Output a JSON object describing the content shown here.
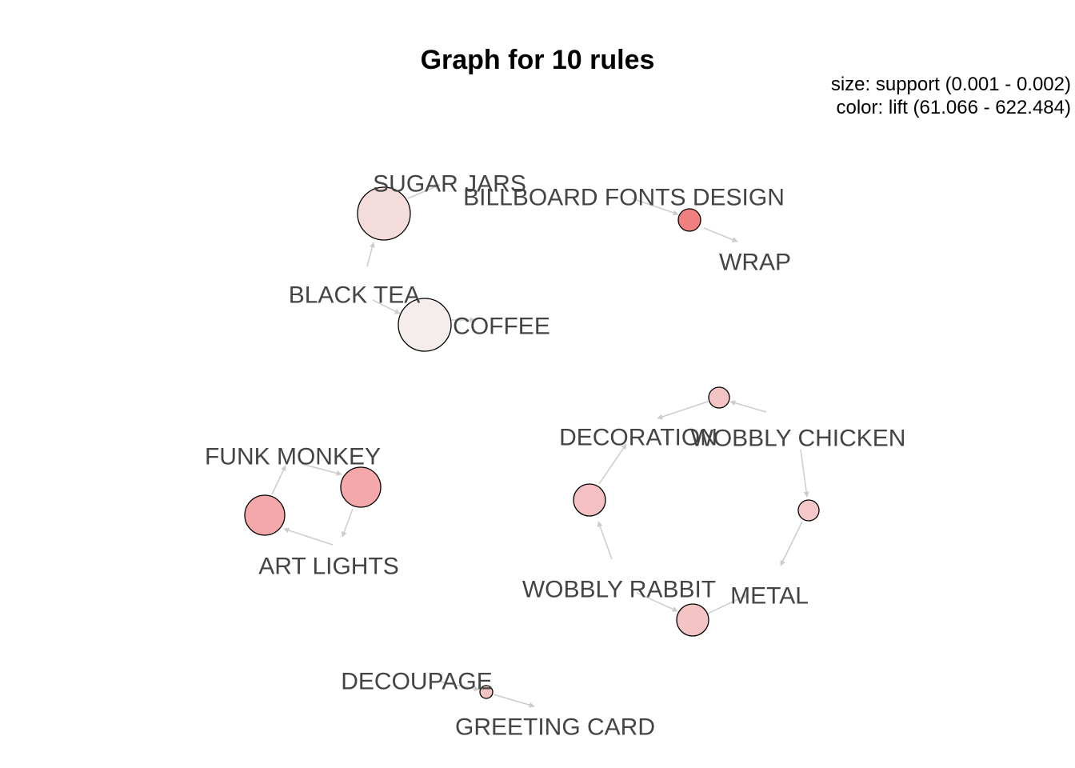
{
  "title": "Graph for 10 rules",
  "legend": {
    "size": "size: support (0.001 - 0.002)",
    "color": "color: lift (61.066 - 622.484)"
  },
  "colors": {
    "edge": "#cccccc",
    "node_stroke": "#000000",
    "label": "#444444"
  },
  "items": [
    {
      "id": "sugar_jars",
      "label": "SUGAR JARS"
    },
    {
      "id": "billboard",
      "label": "BILLBOARD FONTS DESIGN"
    },
    {
      "id": "wrap",
      "label": "WRAP"
    },
    {
      "id": "black_tea",
      "label": "BLACK TEA"
    },
    {
      "id": "coffee",
      "label": "COFFEE"
    },
    {
      "id": "funk_monkey",
      "label": "FUNK MONKEY"
    },
    {
      "id": "art_lights",
      "label": "ART LIGHTS"
    },
    {
      "id": "decoration",
      "label": "DECORATION"
    },
    {
      "id": "wobbly_chicken",
      "label": "WOBBLY CHICKEN"
    },
    {
      "id": "wobbly_rabbit",
      "label": "WOBBLY RABBIT"
    },
    {
      "id": "metal",
      "label": "METAL"
    },
    {
      "id": "decoupage",
      "label": "DECOUPAGE"
    },
    {
      "id": "greeting_card",
      "label": "GREETING CARD"
    }
  ],
  "rules": [
    {
      "id": "r1",
      "lhs": "black_tea",
      "rhs": "sugar_jars",
      "color": "#f4dcdd"
    },
    {
      "id": "r2",
      "lhs": "black_tea",
      "rhs": "coffee",
      "color": "#f5ecec"
    },
    {
      "id": "r3",
      "lhs": "billboard",
      "rhs": "wrap",
      "color": "#f08080"
    },
    {
      "id": "r4",
      "lhs": "funk_monkey",
      "rhs": "art_lights",
      "color": "#f4a8a9"
    },
    {
      "id": "r5",
      "lhs": "art_lights",
      "rhs": "funk_monkey",
      "color": "#f4a8a9"
    },
    {
      "id": "r6",
      "lhs": "wobbly_chicken",
      "rhs": "decoration",
      "color": "#f4c4c5"
    },
    {
      "id": "r7",
      "lhs": "wobbly_chicken",
      "rhs": "metal",
      "color": "#f4c8c9"
    },
    {
      "id": "r8",
      "lhs": "wobbly_rabbit",
      "rhs": "decoration",
      "color": "#f4c0c1"
    },
    {
      "id": "r9",
      "lhs": "wobbly_rabbit",
      "rhs": "metal",
      "color": "#f4c4c5"
    },
    {
      "id": "r10",
      "lhs": "decoupage",
      "rhs": "greeting_card",
      "color": "#f4c4c5"
    }
  ]
}
